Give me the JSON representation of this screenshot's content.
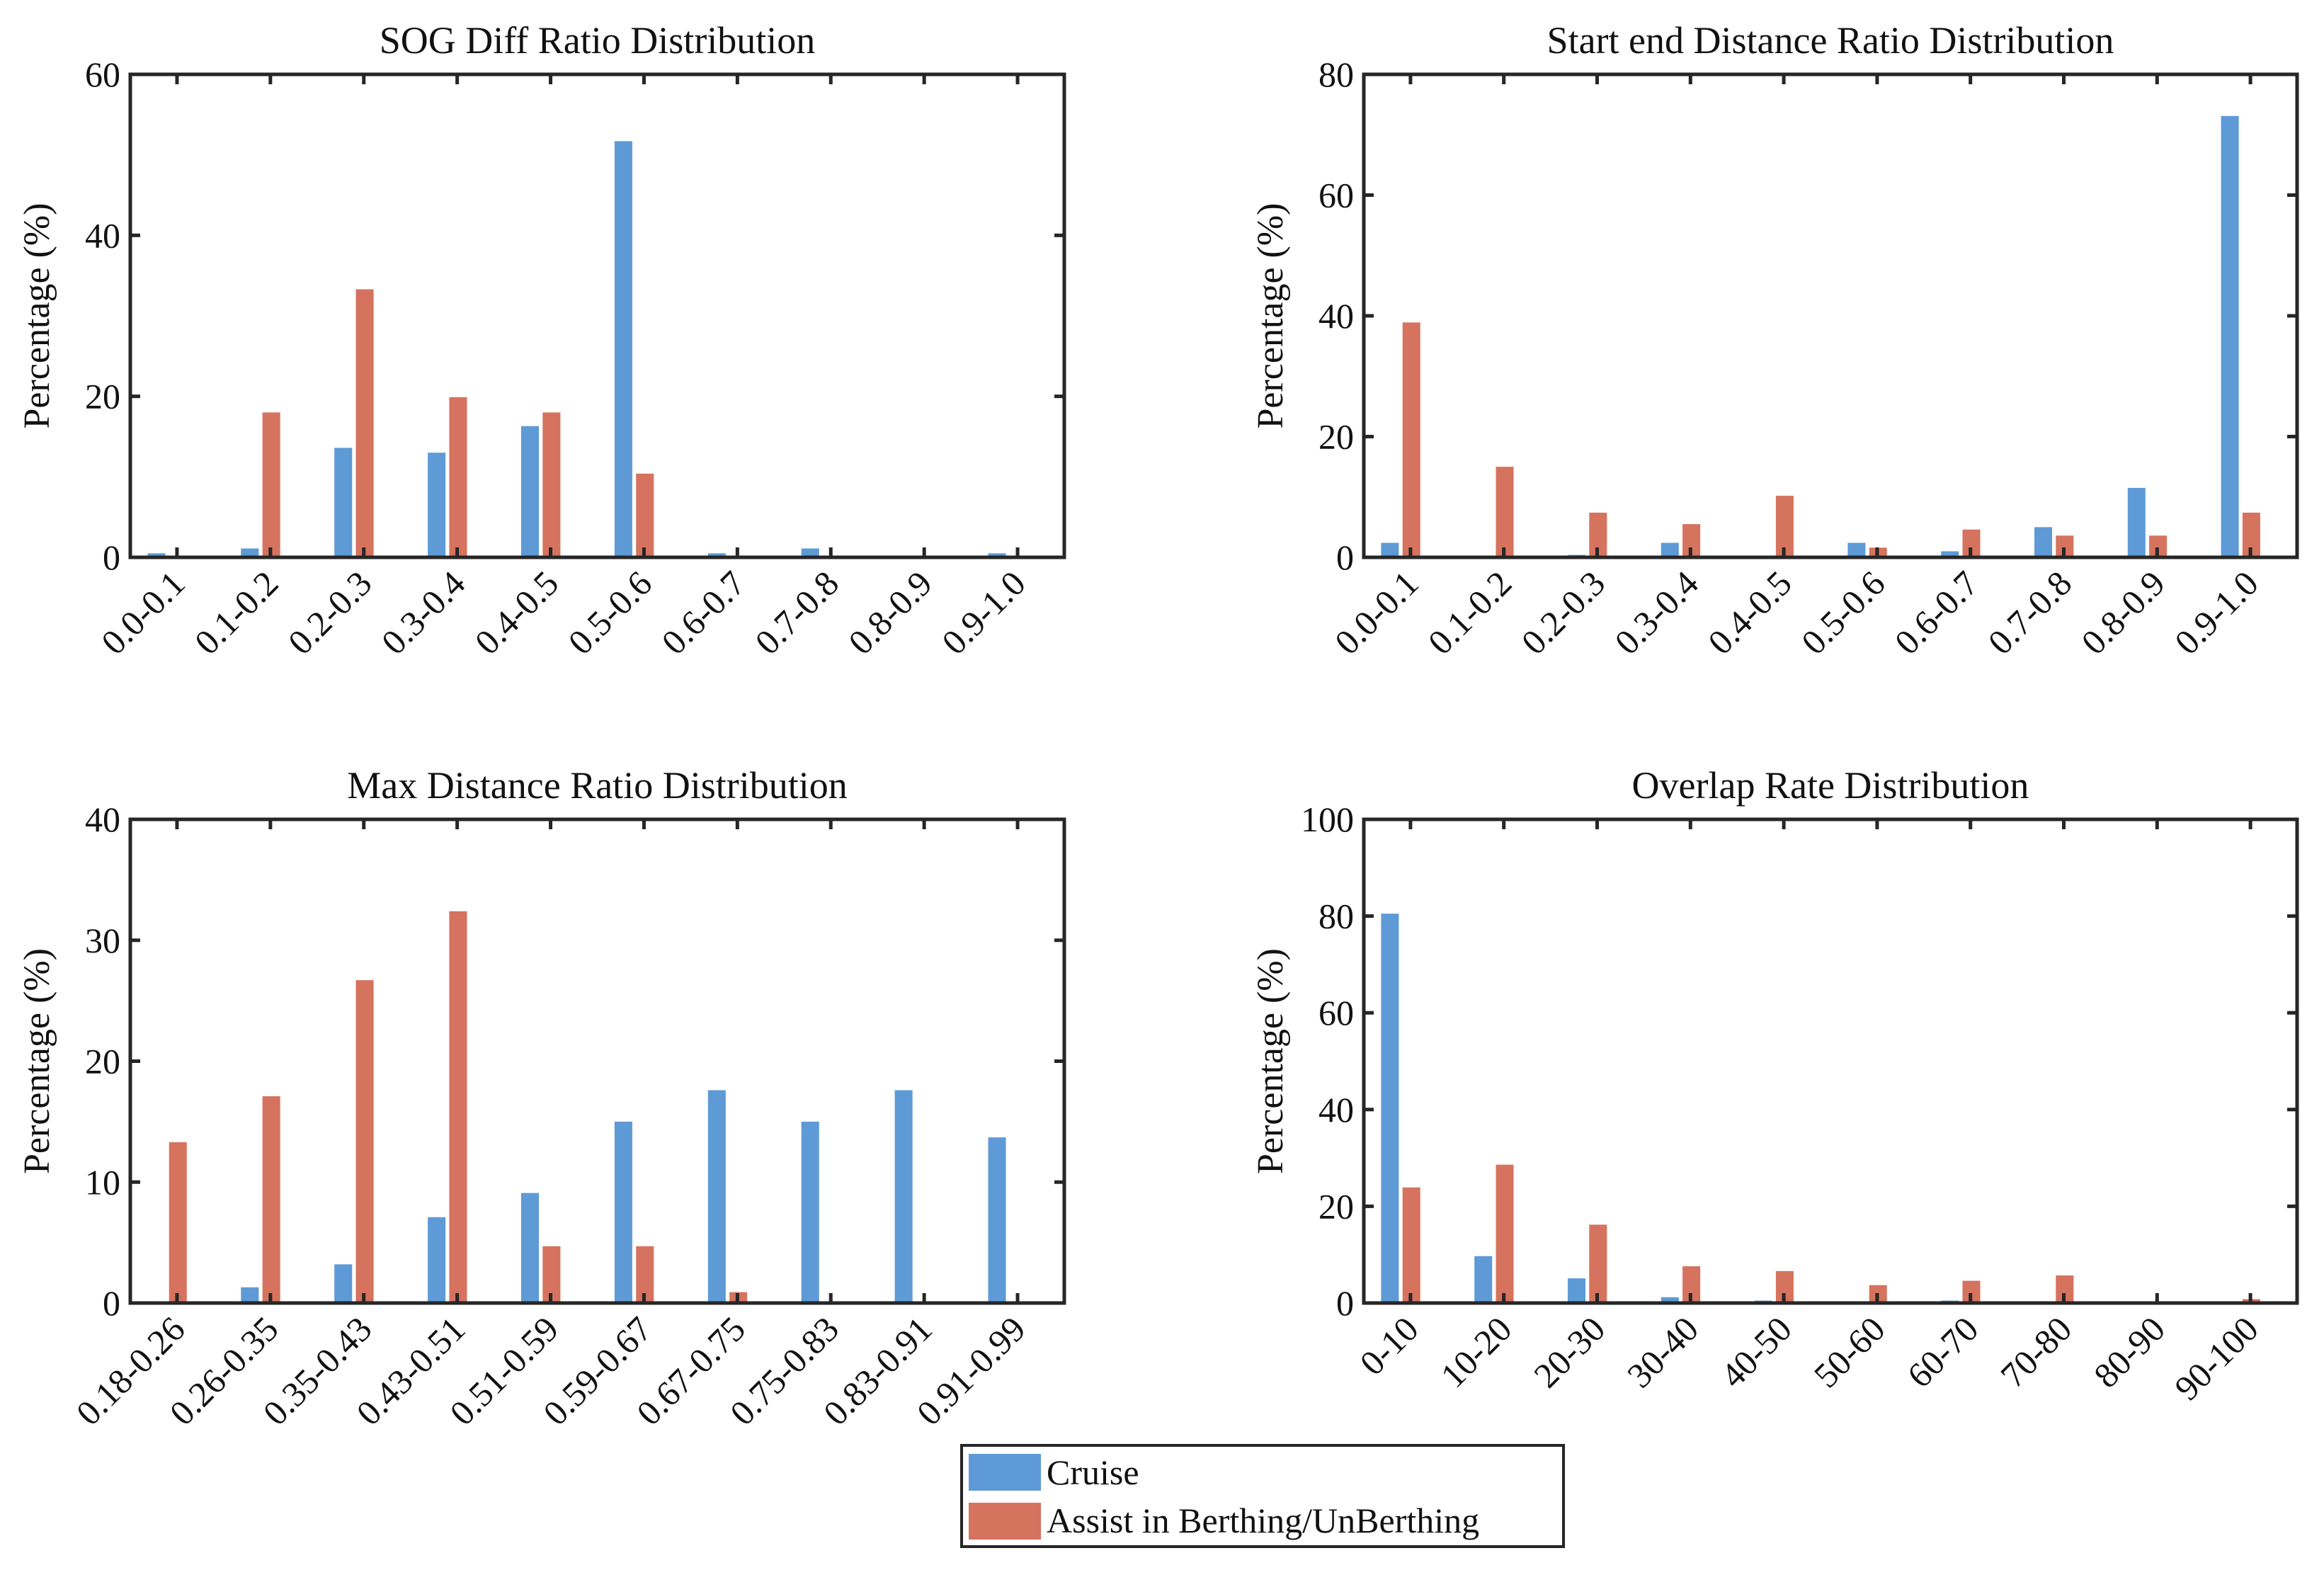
{
  "colors": {
    "cruise": "#5e9ad6",
    "assist": "#d5735e",
    "axis": "#262626"
  },
  "legend": {
    "items": [
      "Cruise",
      "Assist in Berthing/UnBerthing"
    ]
  },
  "chart_data": [
    {
      "type": "bar",
      "title": "SOG Diff Ratio Distribution",
      "xlabel": "",
      "ylabel": "Percentage (%)",
      "ylim": [
        0,
        60
      ],
      "yticks": [
        0,
        20,
        40,
        60
      ],
      "categories": [
        "0.0-0.1",
        "0.1-0.2",
        "0.2-0.3",
        "0.3-0.4",
        "0.4-0.5",
        "0.5-0.6",
        "0.6-0.7",
        "0.7-0.8",
        "0.8-0.9",
        "0.9-1.0"
      ],
      "series": [
        {
          "name": "Cruise",
          "values": [
            0.5,
            1.1,
            13.6,
            13.0,
            16.3,
            51.7,
            0.5,
            1.1,
            0,
            0.5
          ]
        },
        {
          "name": "Assist in Berthing/UnBerthing",
          "values": [
            0,
            18.0,
            33.3,
            19.9,
            18.0,
            10.4,
            0,
            0,
            0,
            0
          ]
        }
      ]
    },
    {
      "type": "bar",
      "title": "Start end Distance Ratio Distribution",
      "xlabel": "",
      "ylabel": "Percentage (%)",
      "ylim": [
        0,
        80
      ],
      "yticks": [
        0,
        20,
        40,
        60,
        80
      ],
      "categories": [
        "0.0-0.1",
        "0.1-0.2",
        "0.2-0.3",
        "0.3-0.4",
        "0.4-0.5",
        "0.5-0.6",
        "0.6-0.7",
        "0.7-0.8",
        "0.8-0.9",
        "0.9-1.0"
      ],
      "series": [
        {
          "name": "Cruise",
          "values": [
            2.4,
            0,
            0.4,
            2.4,
            0,
            2.4,
            1.0,
            5.0,
            11.5,
            73.1
          ]
        },
        {
          "name": "Assist in Berthing/UnBerthing",
          "values": [
            38.9,
            15.0,
            7.4,
            5.5,
            10.2,
            1.6,
            4.6,
            3.6,
            3.6,
            7.4
          ]
        }
      ]
    },
    {
      "type": "bar",
      "title": "Max Distance Ratio Distribution",
      "xlabel": "",
      "ylabel": "Percentage (%)",
      "ylim": [
        0,
        40
      ],
      "yticks": [
        0,
        10,
        20,
        30,
        40
      ],
      "categories": [
        "0.18-0.26",
        "0.26-0.35",
        "0.35-0.43",
        "0.43-0.51",
        "0.51-0.59",
        "0.59-0.67",
        "0.67-0.75",
        "0.75-0.83",
        "0.83-0.91",
        "0.91-0.99"
      ],
      "series": [
        {
          "name": "Cruise",
          "values": [
            0,
            1.3,
            3.2,
            7.1,
            9.1,
            15.0,
            17.6,
            15.0,
            17.6,
            13.7
          ]
        },
        {
          "name": "Assist in Berthing/UnBerthing",
          "values": [
            13.3,
            17.1,
            26.7,
            32.4,
            4.7,
            4.7,
            0.9,
            0,
            0,
            0
          ]
        }
      ]
    },
    {
      "type": "bar",
      "title": "Overlap Rate Distribution",
      "xlabel": "",
      "ylabel": "Percentage (%)",
      "ylim": [
        0,
        100
      ],
      "yticks": [
        0,
        20,
        40,
        60,
        80,
        100
      ],
      "categories": [
        "0-10",
        "10-20",
        "20-30",
        "30-40",
        "40-50",
        "50-60",
        "60-70",
        "70-80",
        "80-90",
        "90-100"
      ],
      "series": [
        {
          "name": "Cruise",
          "values": [
            80.5,
            9.7,
            5.1,
            1.2,
            0.5,
            0,
            0.5,
            0,
            0,
            0
          ]
        },
        {
          "name": "Assist in Berthing/UnBerthing",
          "values": [
            23.9,
            28.6,
            16.2,
            7.6,
            6.6,
            3.7,
            4.6,
            5.7,
            0,
            0.8
          ]
        }
      ]
    }
  ]
}
